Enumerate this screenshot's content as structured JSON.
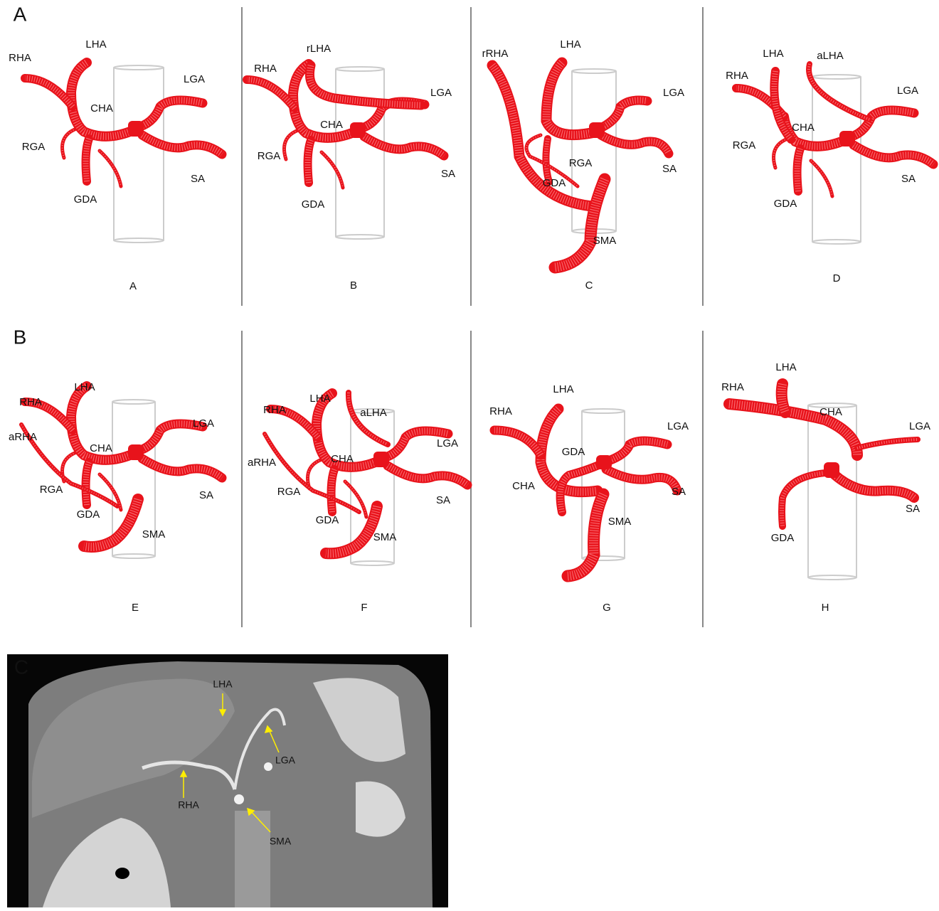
{
  "sections": [
    {
      "letter": "A",
      "panels": [
        {
          "caption": "A",
          "labels": [
            "RHA",
            "LHA",
            "CHA",
            "LGA",
            "RGA",
            "SA",
            "GDA"
          ]
        },
        {
          "caption": "B",
          "labels": [
            "RHA",
            "rLHA",
            "LGA",
            "CHA",
            "RGA",
            "SA",
            "GDA"
          ]
        },
        {
          "caption": "C",
          "labels": [
            "rRHA",
            "LHA",
            "LGA",
            "RGA",
            "GDA",
            "SA",
            "SMA"
          ]
        },
        {
          "caption": "D",
          "labels": [
            "RHA",
            "LHA",
            "aLHA",
            "LGA",
            "CHA",
            "RGA",
            "SA",
            "GDA"
          ]
        }
      ]
    },
    {
      "letter": "B",
      "panels": [
        {
          "caption": "E",
          "labels": [
            "RHA",
            "LHA",
            "LGA",
            "aRHA",
            "CHA",
            "RGA",
            "SA",
            "GDA",
            "SMA"
          ]
        },
        {
          "caption": "F",
          "labels": [
            "RHA",
            "LHA",
            "aLHA",
            "LGA",
            "aRHA",
            "CHA",
            "RGA",
            "SA",
            "GDA",
            "SMA"
          ]
        },
        {
          "caption": "G",
          "labels": [
            "LHA",
            "RHA",
            "LGA",
            "GDA",
            "CHA",
            "SA",
            "SMA"
          ]
        },
        {
          "caption": "H",
          "labels": [
            "LHA",
            "RHA",
            "CHA",
            "LGA",
            "SA",
            "GDA"
          ]
        }
      ]
    },
    {
      "letter": "C",
      "labels": [
        "LHA",
        "LGA",
        "RHA",
        "SMA"
      ]
    }
  ]
}
